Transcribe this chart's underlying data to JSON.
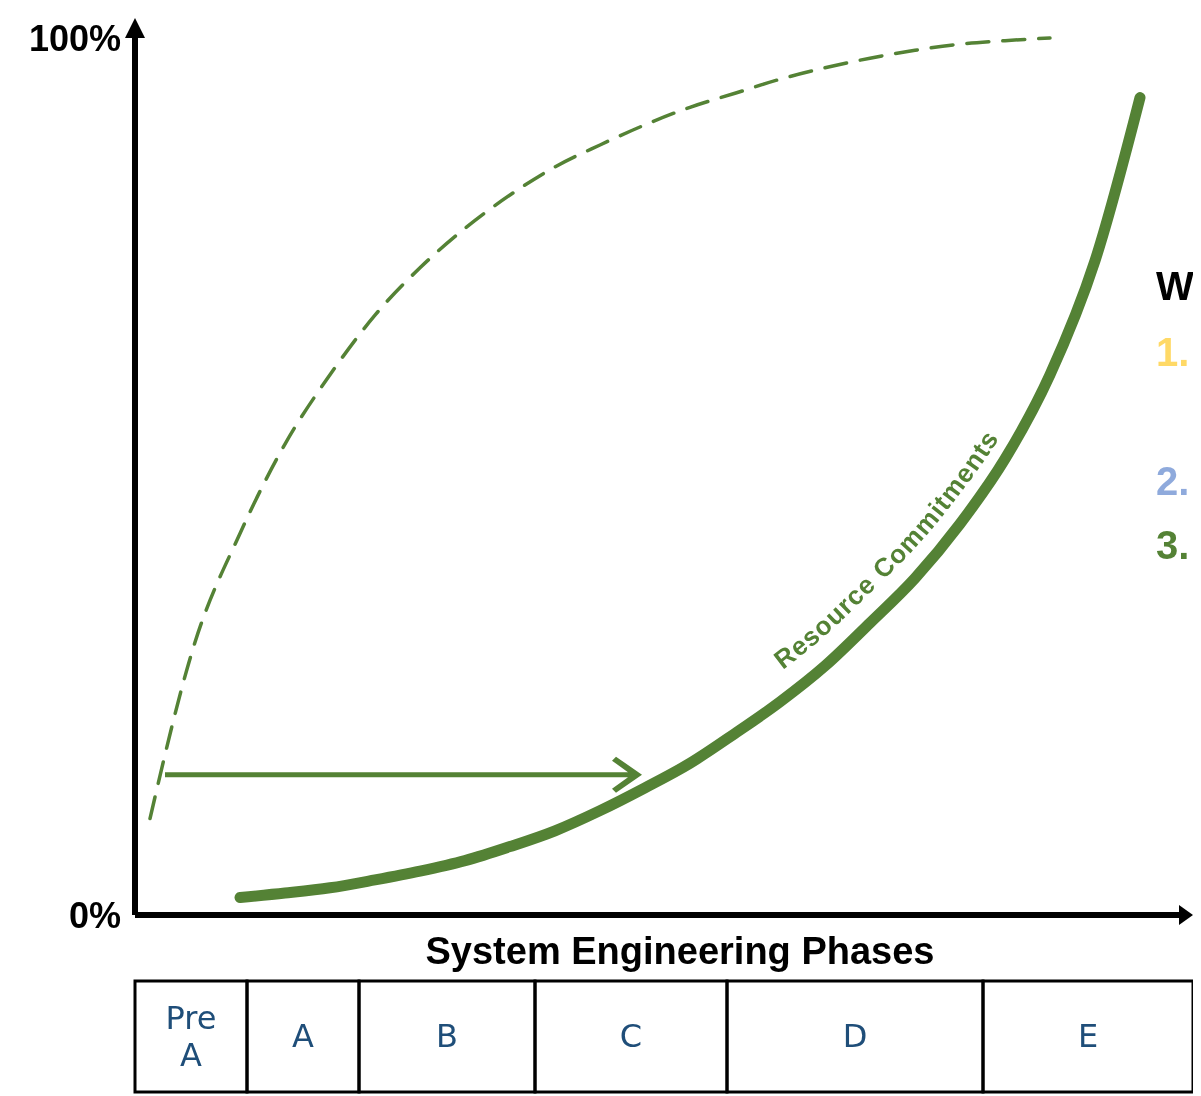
{
  "chart_data": {
    "type": "line",
    "xlabel": "System Engineering Phases",
    "categories": [
      null,
      null,
      null,
      null,
      null,
      null,
      null,
      null,
      null,
      null,
      null,
      null,
      null,
      null,
      null,
      null,
      null,
      null,
      null,
      null,
      null,
      null,
      null
    ],
    "series": [
      {
        "name": "Resource Commitments",
        "color": "#548235",
        "line_style": "solid",
        "values": [
          null,
          null,
          2.0,
          2.5,
          3.1,
          4.0,
          5.0,
          6.2,
          7.8,
          9.6,
          11.9,
          14.5,
          17.3,
          20.7,
          24.3,
          28.4,
          33.3,
          38.4,
          44.6,
          52.0,
          61.6,
          74.6,
          93.2
        ]
      },
      {
        "color": "#548235",
        "line_style": "dashed",
        "values": [
          11,
          31.1,
          43.5,
          53.7,
          61.6,
          68.4,
          73.8,
          78.3,
          82.1,
          85.3,
          87.8,
          90.1,
          92.1,
          93.7,
          95.3,
          96.6,
          97.7,
          98.6,
          99.3,
          99.7,
          100,
          null,
          null
        ]
      }
    ],
    "ylim": [
      0,
      100
    ],
    "yticks": [
      {
        "value": 0,
        "label": "0%"
      },
      {
        "value": 100,
        "label": "100%"
      }
    ],
    "annotations": [
      "Pre A",
      "A",
      "B",
      "C",
      "D",
      "E",
      "W",
      "1.",
      "2.",
      "3."
    ]
  }
}
